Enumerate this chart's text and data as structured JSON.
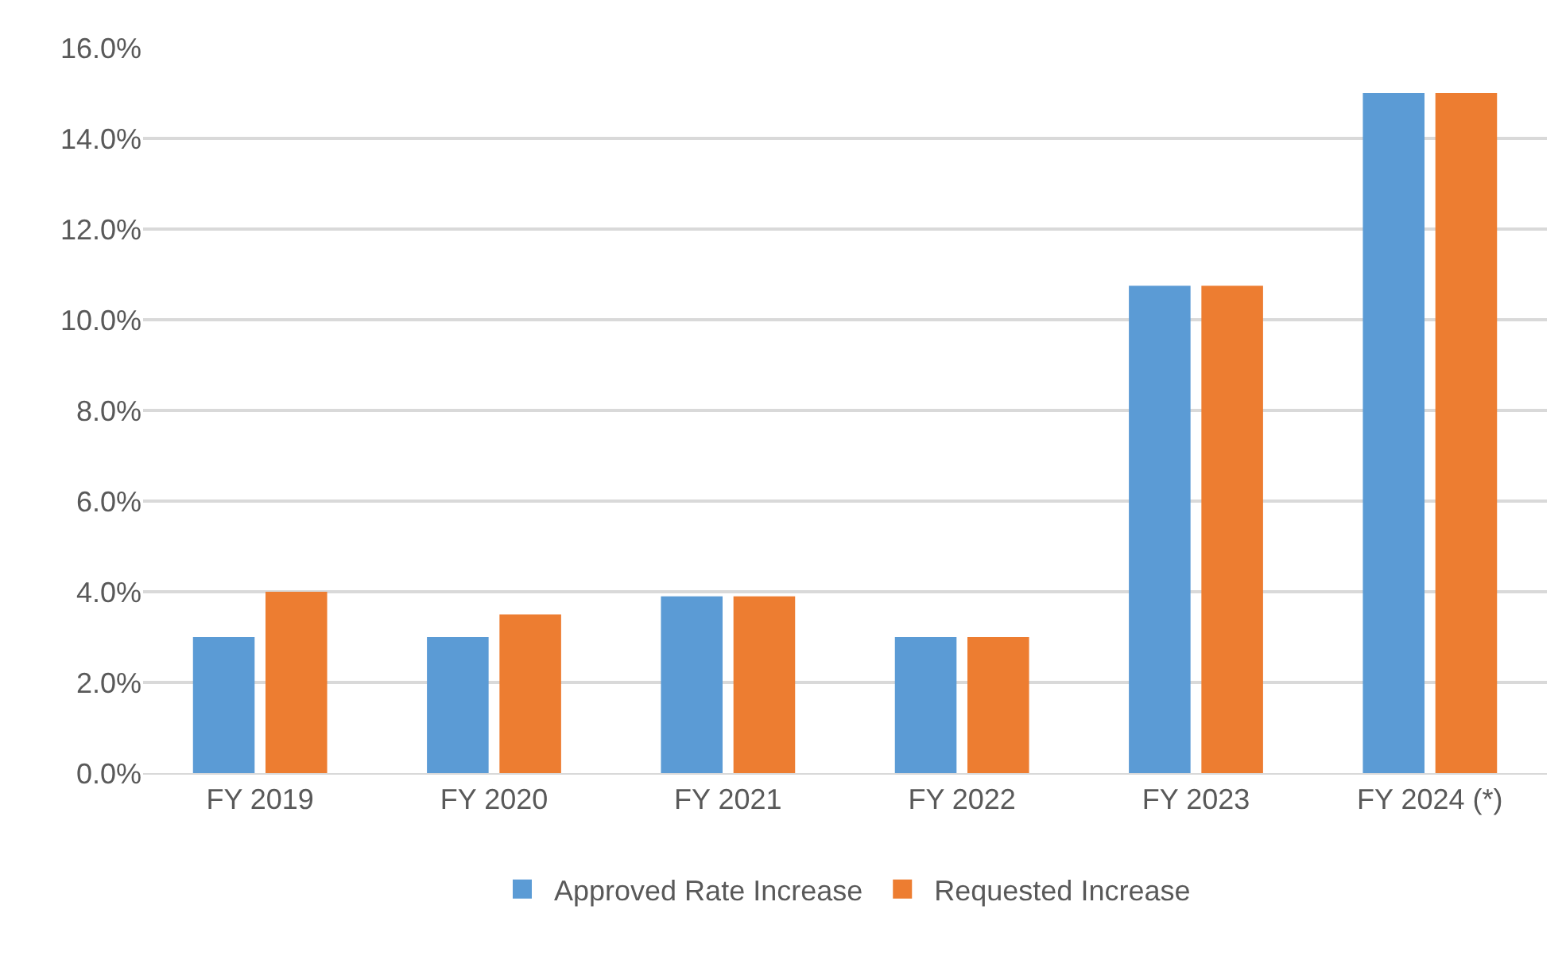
{
  "chart_data": {
    "type": "bar",
    "categories": [
      "FY 2019",
      "FY 2020",
      "FY 2021",
      "FY 2022",
      "FY 2023",
      "FY 2024 (*)"
    ],
    "series": [
      {
        "name": "Approved Rate Increase",
        "color": "#5b9bd5",
        "values": [
          3.0,
          3.0,
          3.9,
          3.0,
          10.75,
          15.0
        ]
      },
      {
        "name": "Requested Increase",
        "color": "#ed7d31",
        "values": [
          4.0,
          3.5,
          3.9,
          3.0,
          10.75,
          15.0
        ]
      }
    ],
    "ylim": [
      0,
      16
    ],
    "yticks": [
      {
        "value": 0,
        "label": "0.0%"
      },
      {
        "value": 2,
        "label": "2.0%"
      },
      {
        "value": 4,
        "label": "4.0%"
      },
      {
        "value": 6,
        "label": "6.0%"
      },
      {
        "value": 8,
        "label": "8.0%"
      },
      {
        "value": 10,
        "label": "10.0%"
      },
      {
        "value": 12,
        "label": "12.0%"
      },
      {
        "value": 14,
        "label": "14.0%"
      },
      {
        "value": 16,
        "label": "16.0%"
      }
    ],
    "grid": "y",
    "legend": "bottom"
  }
}
